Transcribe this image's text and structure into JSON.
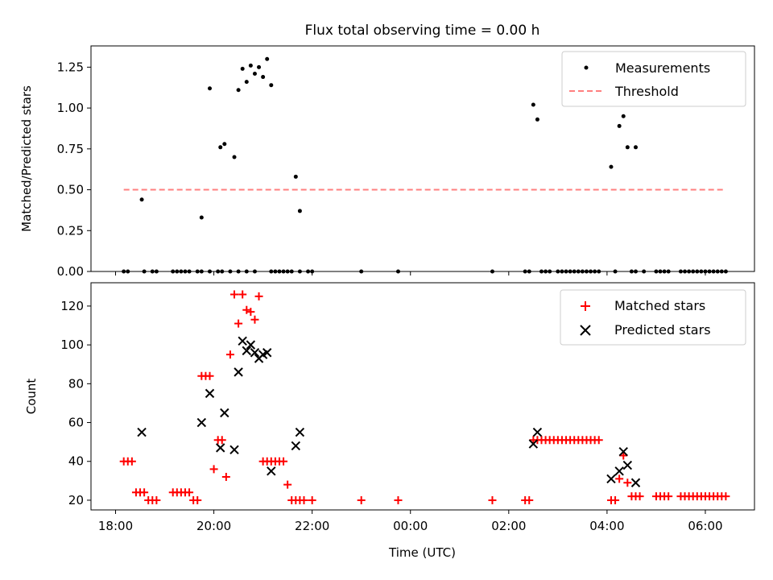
{
  "chart_data": {
    "type": "scatter",
    "title": "Flux total observing time = 0.00 h",
    "xlabel": "Time (UTC)",
    "x_ticks": [
      "18:00",
      "20:00",
      "22:00",
      "00:00",
      "02:00",
      "04:00",
      "06:00"
    ],
    "x_range_hours_from_18": [
      -0.5,
      13.0
    ],
    "panels": [
      {
        "ylabel": "Matched/Predicted stars",
        "ylim": [
          0,
          1.38
        ],
        "y_ticks": [
          "0.00",
          "0.25",
          "0.50",
          "0.75",
          "1.00",
          "1.25"
        ],
        "legend_position": "upper right",
        "series": [
          {
            "name": "Measurements",
            "kind": "dot",
            "color": "#000000",
            "x": [
              "18:10",
              "18:15",
              "18:35",
              "18:45",
              "18:50",
              "19:10",
              "19:15",
              "19:20",
              "19:25",
              "19:30",
              "19:40",
              "19:45",
              "19:55",
              "20:05",
              "20:10",
              "20:20",
              "20:30",
              "20:40",
              "20:50",
              "21:10",
              "21:15",
              "21:20",
              "21:25",
              "21:30",
              "21:35",
              "21:45",
              "21:55",
              "22:00",
              "23:00",
              "23:45",
              "01:40",
              "02:20",
              "02:25",
              "02:40",
              "02:45",
              "02:50",
              "03:00",
              "03:05",
              "03:10",
              "03:15",
              "03:20",
              "03:25",
              "03:30",
              "03:35",
              "03:40",
              "03:45",
              "03:50",
              "04:10",
              "04:30",
              "04:35",
              "04:45",
              "05:00",
              "05:05",
              "05:10",
              "05:15",
              "05:30",
              "05:35",
              "05:40",
              "05:45",
              "05:50",
              "05:55",
              "06:00",
              "06:05",
              "06:10",
              "06:15",
              "06:20",
              "06:25",
              "18:32",
              "19:45",
              "19:55",
              "20:08",
              "20:13",
              "20:25",
              "20:30",
              "20:35",
              "20:40",
              "20:45",
              "20:50",
              "20:55",
              "21:00",
              "21:05",
              "21:10",
              "21:40",
              "21:45",
              "02:30",
              "02:35",
              "04:05",
              "04:15",
              "04:20",
              "04:25",
              "04:35"
            ],
            "y": [
              0,
              0,
              0,
              0,
              0,
              0,
              0,
              0,
              0,
              0,
              0,
              0,
              0,
              0,
              0,
              0,
              0,
              0,
              0,
              0,
              0,
              0,
              0,
              0,
              0,
              0,
              0,
              0,
              0,
              0,
              0,
              0,
              0,
              0,
              0,
              0,
              0,
              0,
              0,
              0,
              0,
              0,
              0,
              0,
              0,
              0,
              0,
              0,
              0,
              0,
              0,
              0,
              0,
              0,
              0,
              0,
              0,
              0,
              0,
              0,
              0,
              0,
              0,
              0,
              0,
              0,
              0,
              0.44,
              0.33,
              1.12,
              0.76,
              0.78,
              0.7,
              1.11,
              1.24,
              1.16,
              1.26,
              1.21,
              1.25,
              1.19,
              1.3,
              1.14,
              0.58,
              0.37,
              1.02,
              0.93,
              0.64,
              0.89,
              0.95,
              0.76,
              0.76
            ]
          },
          {
            "name": "Threshold",
            "kind": "dashed-line",
            "color": "#ff7f7f",
            "x": [
              "18:10",
              "06:25"
            ],
            "y": [
              0.5,
              0.5
            ]
          }
        ]
      },
      {
        "ylabel": "Count",
        "ylim": [
          15,
          132
        ],
        "y_ticks": [
          "20",
          "40",
          "60",
          "80",
          "100",
          "120"
        ],
        "legend_position": "upper right",
        "series": [
          {
            "name": "Matched stars",
            "kind": "plus",
            "color": "#ff0000",
            "x": [
              "18:10",
              "18:15",
              "18:20",
              "18:25",
              "18:30",
              "18:35",
              "18:40",
              "18:45",
              "18:50",
              "19:10",
              "19:15",
              "19:20",
              "19:25",
              "19:30",
              "19:35",
              "19:40",
              "19:45",
              "19:50",
              "19:55",
              "20:00",
              "20:05",
              "20:10",
              "20:15",
              "20:20",
              "20:25",
              "20:30",
              "20:35",
              "20:40",
              "20:45",
              "20:50",
              "20:55",
              "21:00",
              "21:05",
              "21:10",
              "21:15",
              "21:20",
              "21:25",
              "21:30",
              "21:35",
              "21:40",
              "21:45",
              "21:50",
              "22:00",
              "23:00",
              "23:45",
              "01:40",
              "02:20",
              "02:25",
              "02:30",
              "02:35",
              "02:40",
              "02:45",
              "02:50",
              "02:55",
              "03:00",
              "03:05",
              "03:10",
              "03:15",
              "03:20",
              "03:25",
              "03:30",
              "03:35",
              "03:40",
              "03:45",
              "03:50",
              "04:05",
              "04:10",
              "04:15",
              "04:20",
              "04:25",
              "04:30",
              "04:35",
              "04:40",
              "05:00",
              "05:05",
              "05:10",
              "05:15",
              "05:30",
              "05:35",
              "05:40",
              "05:45",
              "05:50",
              "05:55",
              "06:00",
              "06:05",
              "06:10",
              "06:15",
              "06:20",
              "06:25"
            ],
            "y": [
              40,
              40,
              40,
              24,
              24,
              24,
              20,
              20,
              20,
              24,
              24,
              24,
              24,
              24,
              20,
              20,
              84,
              84,
              84,
              36,
              51,
              51,
              32,
              95,
              126,
              111,
              126,
              118,
              117,
              113,
              125,
              40,
              40,
              40,
              40,
              40,
              40,
              28,
              20,
              20,
              20,
              20,
              20,
              20,
              20,
              20,
              20,
              20,
              51,
              51,
              51,
              51,
              51,
              51,
              51,
              51,
              51,
              51,
              51,
              51,
              51,
              51,
              51,
              51,
              51,
              20,
              20,
              31,
              43,
              29,
              22,
              22,
              22,
              22,
              22,
              22,
              22,
              22,
              22,
              22,
              22,
              22,
              22,
              22,
              22,
              22,
              22,
              22,
              22
            ]
          },
          {
            "name": "Predicted stars",
            "kind": "x",
            "color": "#000000",
            "x": [
              "18:32",
              "19:45",
              "19:55",
              "20:08",
              "20:13",
              "20:25",
              "20:30",
              "20:35",
              "20:40",
              "20:45",
              "20:50",
              "20:55",
              "21:00",
              "21:05",
              "21:10",
              "21:40",
              "21:45",
              "02:30",
              "02:35",
              "04:05",
              "04:15",
              "04:20",
              "04:25",
              "04:35"
            ],
            "y": [
              55,
              60,
              75,
              47,
              65,
              46,
              86,
              102,
              97,
              100,
              96,
              93,
              95,
              96,
              35,
              48,
              55,
              49,
              55,
              31,
              35,
              45,
              38,
              29
            ]
          }
        ]
      }
    ]
  }
}
